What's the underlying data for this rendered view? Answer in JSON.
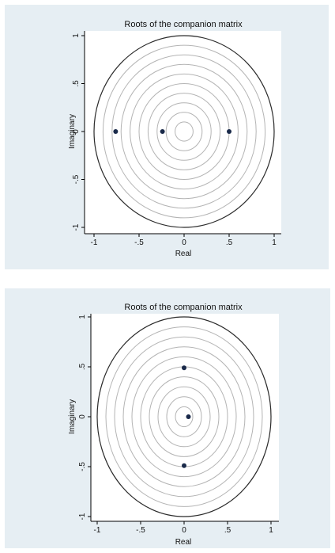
{
  "chart_data": [
    {
      "type": "scatter",
      "title": "Roots of the companion matrix",
      "xlabel": "Real",
      "ylabel": "Imaginary",
      "xlim": [
        -1,
        1
      ],
      "ylim": [
        -1,
        1
      ],
      "xticks": [
        -1,
        -0.5,
        0,
        0.5,
        1
      ],
      "xtick_labels": [
        "-1",
        "-.5",
        "0",
        ".5",
        "1"
      ],
      "yticks": [
        -1,
        -0.5,
        0,
        0.5,
        1
      ],
      "ytick_labels": [
        "-1",
        "-.5",
        "0",
        ".5",
        "1"
      ],
      "grid": "concentric circles",
      "unit_circle": true,
      "points": [
        {
          "x": -0.76,
          "y": 0
        },
        {
          "x": -0.24,
          "y": 0
        },
        {
          "x": 0.5,
          "y": 0
        }
      ]
    },
    {
      "type": "scatter",
      "title": "Roots of the companion matrix",
      "xlabel": "Real",
      "ylabel": "Imaginary",
      "xlim": [
        -1,
        1
      ],
      "ylim": [
        -1,
        1
      ],
      "xticks": [
        -1,
        -0.5,
        0,
        0.5,
        1
      ],
      "xtick_labels": [
        "-1",
        "-.5",
        "0",
        ".5",
        "1"
      ],
      "yticks": [
        -1,
        -0.5,
        0,
        0.5,
        1
      ],
      "ytick_labels": [
        "-1",
        "-.5",
        "0",
        ".5",
        "1"
      ],
      "grid": "concentric circles",
      "unit_circle": true,
      "points": [
        {
          "x": 0,
          "y": 0.49
        },
        {
          "x": 0.05,
          "y": 0
        },
        {
          "x": 0,
          "y": -0.49
        }
      ]
    }
  ],
  "colors": {
    "panel_background": "#e6eef3",
    "plot_background": "#ffffff",
    "grid_circle": "#b4b4b4",
    "unit_circle": "#2a2a2a",
    "point": "#1a2a4a"
  }
}
